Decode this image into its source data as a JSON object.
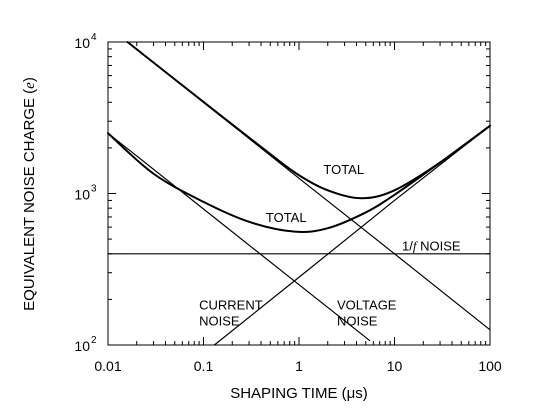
{
  "chart_data": {
    "type": "line",
    "xlabel_prefix": "SHAPING TIME (",
    "xlabel_unit": "μs",
    "xlabel_suffix": ")",
    "ylabel_prefix": "EQUIVALENT NOISE CHARGE (",
    "ylabel_unit": "e",
    "ylabel_suffix": ")",
    "x_scale": "log",
    "y_scale": "log",
    "xlim": [
      0.01,
      100
    ],
    "ylim": [
      100,
      10000
    ],
    "x_ticks": [
      {
        "value": 0.01,
        "label": "0.01"
      },
      {
        "value": 0.1,
        "label": "0.1"
      },
      {
        "value": 1,
        "label": "1"
      },
      {
        "value": 10,
        "label": "10"
      },
      {
        "value": 100,
        "label": "100"
      }
    ],
    "y_ticks": [
      {
        "value": 100,
        "base": "10",
        "exp": "2"
      },
      {
        "value": 1000,
        "base": "10",
        "exp": "3"
      },
      {
        "value": 10000,
        "base": "10",
        "exp": "4"
      }
    ],
    "grid": false,
    "series": [
      {
        "label_lines": [
          "CURRENT",
          "NOISE"
        ],
        "kind": "current",
        "x": [
          0.01,
          0.1,
          1,
          5.5
        ],
        "y": [
          2500,
          790,
          250,
          107
        ]
      },
      {
        "label_lines": [
          "VOLTAGE",
          "NOISE"
        ],
        "kind": "voltage",
        "x": [
          0.016,
          0.1,
          1,
          10,
          100
        ],
        "y": [
          10000,
          4000,
          1260,
          400,
          126
        ]
      },
      {
        "label_prefix": "1/",
        "label_italic": "f",
        "label_suffix": " NOISE",
        "kind": "flat",
        "x": [
          0.01,
          100
        ],
        "y": [
          400,
          400
        ]
      },
      {
        "label_lines": [
          "TOTAL"
        ],
        "kind": "total_upper",
        "x": [
          0.016,
          0.1,
          0.5,
          1,
          2,
          4.5,
          10,
          30,
          100
        ],
        "y": [
          10000,
          4020,
          1820,
          1320,
          1050,
          930,
          1050,
          1600,
          2800
        ]
      },
      {
        "label_lines": [
          "TOTAL"
        ],
        "kind": "total_lower",
        "x": [
          0.01,
          0.03,
          0.1,
          0.3,
          0.9,
          2,
          5,
          10,
          30,
          100
        ],
        "y": [
          2500,
          1350,
          880,
          650,
          560,
          590,
          750,
          980,
          1600,
          2800
        ]
      },
      {
        "label_lines": [],
        "kind": "rising",
        "x": [
          0.13,
          1,
          10,
          100
        ],
        "y": [
          100,
          280,
          900,
          2800
        ]
      }
    ],
    "annotations": [
      {
        "series_kind": "total_upper",
        "x": 1.8,
        "y": 1350
      },
      {
        "series_kind": "total_lower",
        "x": 0.45,
        "y": 650
      },
      {
        "series_kind": "flat",
        "x": 12,
        "y": 420
      },
      {
        "series_kind": "current",
        "x": 0.09,
        "y": 135
      },
      {
        "series_kind": "voltage",
        "x": 2.5,
        "y": 135
      }
    ]
  }
}
